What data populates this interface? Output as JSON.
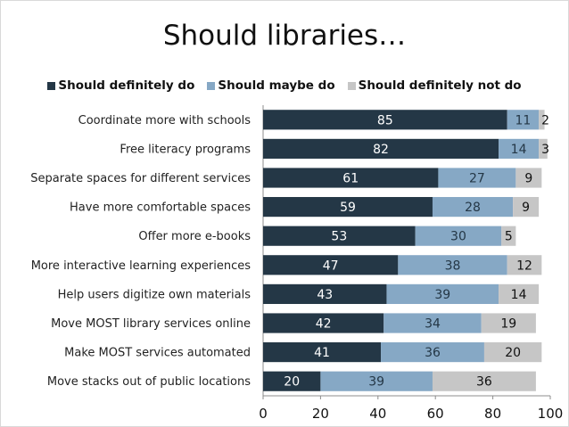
{
  "chart_data": {
    "type": "bar",
    "orientation": "horizontal",
    "stacked": true,
    "title": "Should libraries…",
    "xlabel": "",
    "ylabel": "",
    "xlim": [
      0,
      100
    ],
    "xticks": [
      "0",
      "20",
      "40",
      "60",
      "80",
      "100"
    ],
    "legend_position": "top",
    "categories": [
      "Coordinate more with schools",
      "Free literacy programs",
      "Separate spaces for different services",
      "Have more comfortable spaces",
      "Offer more e-books",
      "More interactive learning experiences",
      "Help users digitize own materials",
      "Move MOST library services online",
      "Make MOST services automated",
      "Move stacks out of public locations"
    ],
    "series": [
      {
        "name": "Should definitely do",
        "color": "#243746",
        "label_color": "#ffffff",
        "values": [
          85,
          82,
          61,
          59,
          53,
          47,
          43,
          42,
          41,
          20
        ]
      },
      {
        "name": "Should maybe do",
        "color": "#86a8c5",
        "label_color": "#243746",
        "values": [
          11,
          14,
          27,
          28,
          30,
          38,
          39,
          34,
          36,
          39
        ]
      },
      {
        "name": "Should definitely not do",
        "color": "#c6c6c6",
        "label_color": "#111111",
        "values": [
          2,
          3,
          9,
          9,
          5,
          12,
          14,
          19,
          20,
          36
        ]
      }
    ]
  }
}
